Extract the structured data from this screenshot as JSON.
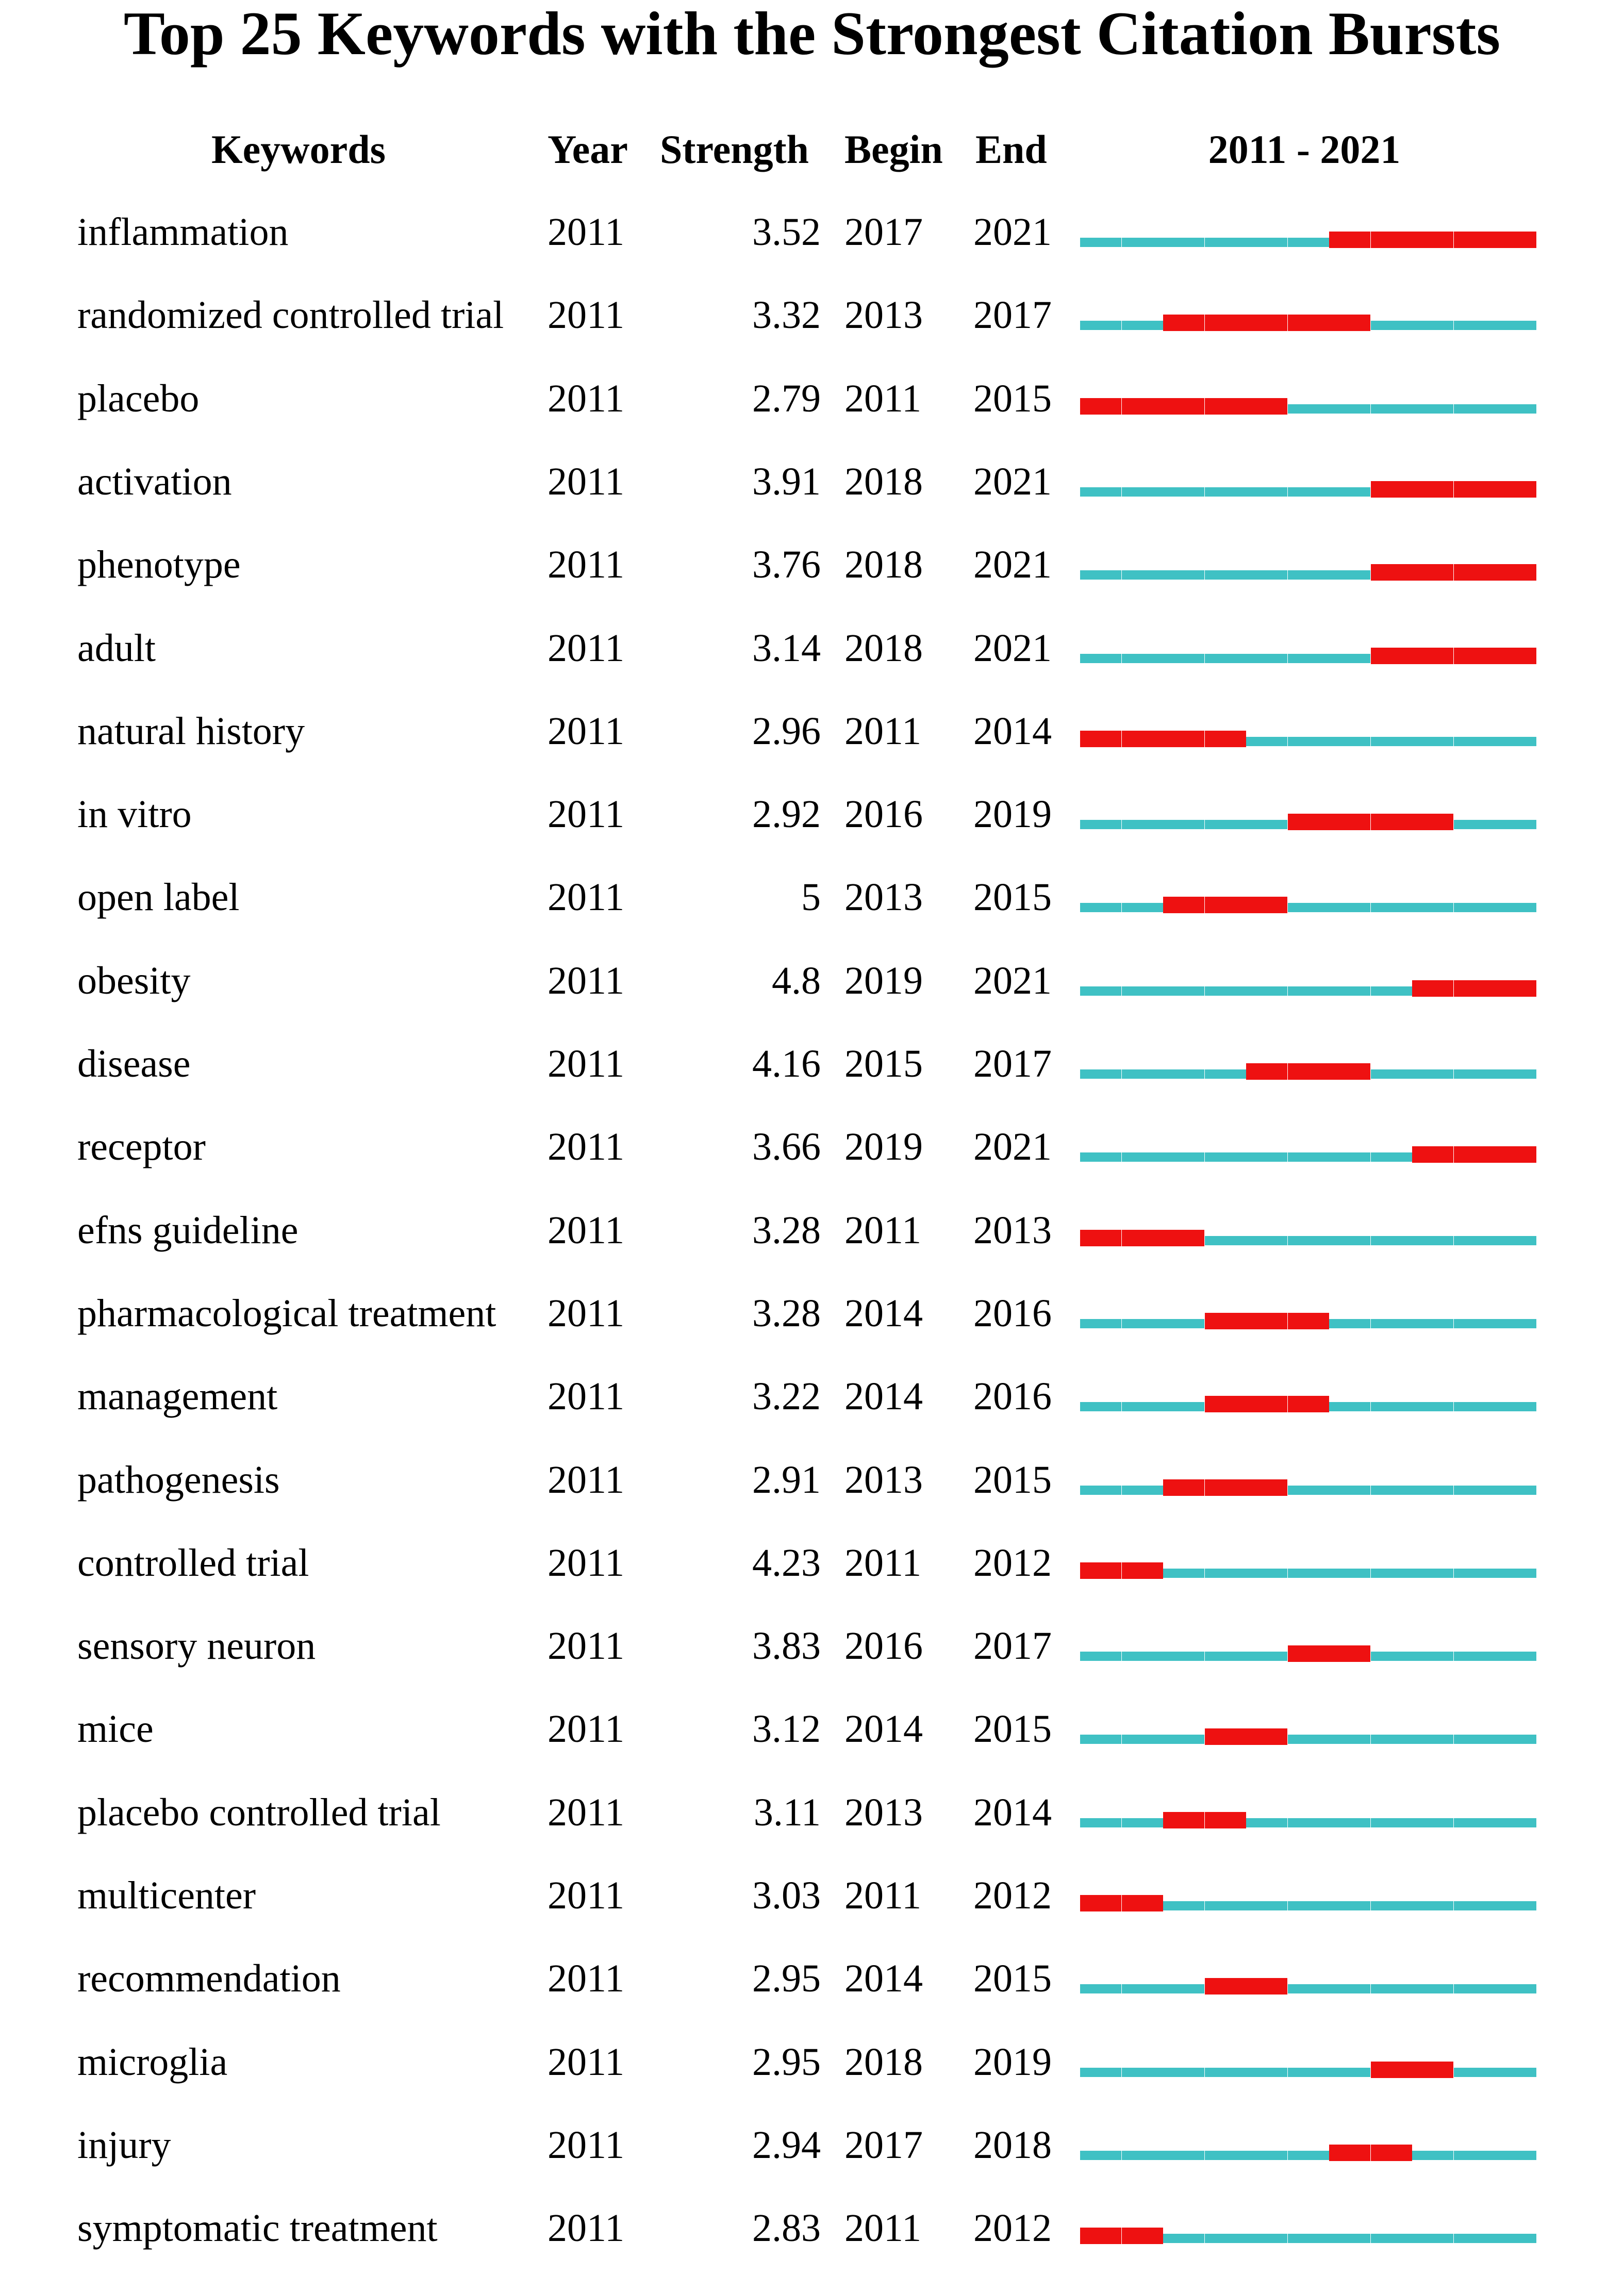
{
  "title": "Top 25 Keywords with the Strongest Citation Bursts",
  "header": {
    "keyword": "Keywords",
    "year": "Year",
    "strength": "Strength",
    "begin": "Begin",
    "end": "End",
    "range": "2011 - 2021"
  },
  "colors": {
    "burst": "#ee1111",
    "normal": "#3fc1c4"
  },
  "chart_data": {
    "type": "table",
    "title": "Top 25 Keywords with the Strongest Citation Bursts",
    "timeline": {
      "start": 2011,
      "end": 2021
    },
    "rows": [
      {
        "keyword": "inflammation",
        "year": "2011",
        "strength": "3.52",
        "begin": "2017",
        "end": "2021"
      },
      {
        "keyword": "randomized controlled trial",
        "year": "2011",
        "strength": "3.32",
        "begin": "2013",
        "end": "2017"
      },
      {
        "keyword": "placebo",
        "year": "2011",
        "strength": "2.79",
        "begin": "2011",
        "end": "2015"
      },
      {
        "keyword": "activation",
        "year": "2011",
        "strength": "3.91",
        "begin": "2018",
        "end": "2021"
      },
      {
        "keyword": "phenotype",
        "year": "2011",
        "strength": "3.76",
        "begin": "2018",
        "end": "2021"
      },
      {
        "keyword": "adult",
        "year": "2011",
        "strength": "3.14",
        "begin": "2018",
        "end": "2021"
      },
      {
        "keyword": "natural history",
        "year": "2011",
        "strength": "2.96",
        "begin": "2011",
        "end": "2014"
      },
      {
        "keyword": "in vitro",
        "year": "2011",
        "strength": "2.92",
        "begin": "2016",
        "end": "2019"
      },
      {
        "keyword": "open label",
        "year": "2011",
        "strength": "5",
        "begin": "2013",
        "end": "2015"
      },
      {
        "keyword": "obesity",
        "year": "2011",
        "strength": "4.8",
        "begin": "2019",
        "end": "2021"
      },
      {
        "keyword": "disease",
        "year": "2011",
        "strength": "4.16",
        "begin": "2015",
        "end": "2017"
      },
      {
        "keyword": "receptor",
        "year": "2011",
        "strength": "3.66",
        "begin": "2019",
        "end": "2021"
      },
      {
        "keyword": "efns guideline",
        "year": "2011",
        "strength": "3.28",
        "begin": "2011",
        "end": "2013"
      },
      {
        "keyword": "pharmacological treatment",
        "year": "2011",
        "strength": "3.28",
        "begin": "2014",
        "end": "2016"
      },
      {
        "keyword": "management",
        "year": "2011",
        "strength": "3.22",
        "begin": "2014",
        "end": "2016"
      },
      {
        "keyword": "pathogenesis",
        "year": "2011",
        "strength": "2.91",
        "begin": "2013",
        "end": "2015"
      },
      {
        "keyword": "controlled trial",
        "year": "2011",
        "strength": "4.23",
        "begin": "2011",
        "end": "2012"
      },
      {
        "keyword": "sensory neuron",
        "year": "2011",
        "strength": "3.83",
        "begin": "2016",
        "end": "2017"
      },
      {
        "keyword": "mice",
        "year": "2011",
        "strength": "3.12",
        "begin": "2014",
        "end": "2015"
      },
      {
        "keyword": "placebo controlled trial",
        "year": "2011",
        "strength": "3.11",
        "begin": "2013",
        "end": "2014"
      },
      {
        "keyword": "multicenter",
        "year": "2011",
        "strength": "3.03",
        "begin": "2011",
        "end": "2012"
      },
      {
        "keyword": "recommendation",
        "year": "2011",
        "strength": "2.95",
        "begin": "2014",
        "end": "2015"
      },
      {
        "keyword": "microglia",
        "year": "2011",
        "strength": "2.95",
        "begin": "2018",
        "end": "2019"
      },
      {
        "keyword": "injury",
        "year": "2011",
        "strength": "2.94",
        "begin": "2017",
        "end": "2018"
      },
      {
        "keyword": "symptomatic treatment",
        "year": "2011",
        "strength": "2.83",
        "begin": "2011",
        "end": "2012"
      }
    ]
  }
}
